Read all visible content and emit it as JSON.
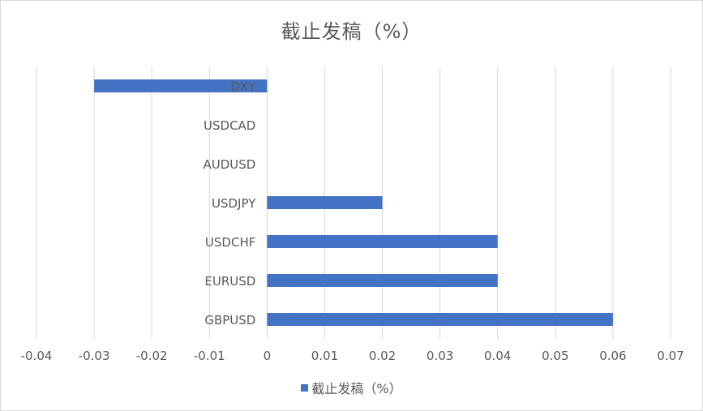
{
  "chart_data": {
    "type": "bar",
    "orientation": "horizontal",
    "title": "截止发稿（%）",
    "categories": [
      "DXY",
      "USDCAD",
      "AUDUSD",
      "USDJPY",
      "USDCHF",
      "EURUSD",
      "GBPUSD"
    ],
    "series": [
      {
        "name": "截止发稿（%）",
        "values": [
          -0.03,
          0,
          0,
          0.02,
          0.04,
          0.04,
          0.06
        ],
        "color": "#4472c4"
      }
    ],
    "x_ticks": [
      "-0.04",
      "-0.03",
      "-0.02",
      "-0.01",
      "0",
      "0.01",
      "0.02",
      "0.03",
      "0.04",
      "0.05",
      "0.06",
      "0.07"
    ],
    "xlim": [
      -0.04,
      0.07
    ],
    "grid": true,
    "legend_position": "bottom"
  }
}
